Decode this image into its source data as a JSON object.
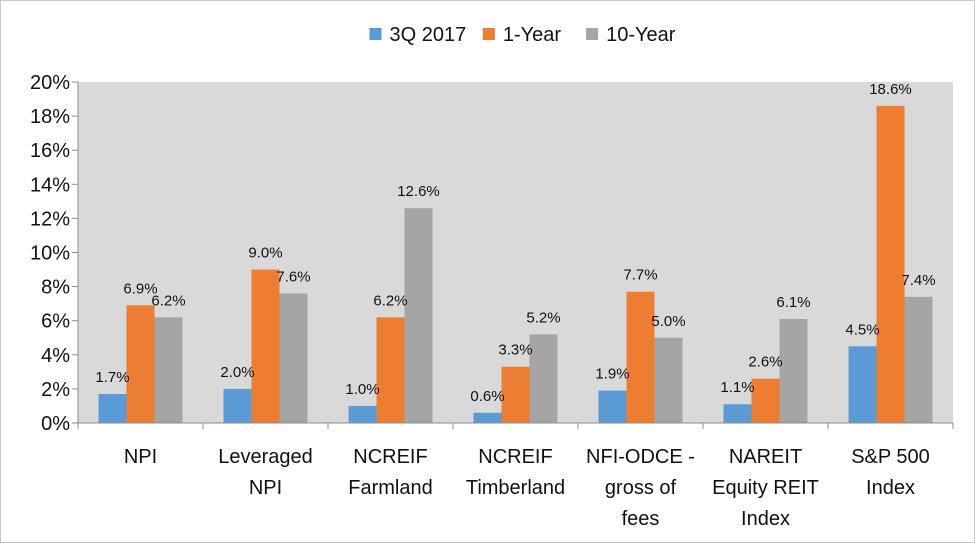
{
  "chart_data": {
    "type": "bar",
    "categories": [
      [
        "NPI"
      ],
      [
        "Leveraged",
        "NPI"
      ],
      [
        "NCREIF",
        "Farmland"
      ],
      [
        "NCREIF",
        "Timberland"
      ],
      [
        "NFI-ODCE -",
        "gross of",
        "fees"
      ],
      [
        "NAREIT",
        "Equity REIT",
        "Index"
      ],
      [
        "S&P 500",
        "Index"
      ]
    ],
    "series": [
      {
        "name": "3Q 2017",
        "color": "#5b9bd5",
        "values": [
          1.7,
          2.0,
          1.0,
          0.6,
          1.9,
          1.1,
          4.5
        ]
      },
      {
        "name": "1-Year",
        "color": "#ed7d31",
        "values": [
          6.9,
          9.0,
          6.2,
          3.3,
          7.7,
          2.6,
          18.6
        ]
      },
      {
        "name": "10-Year",
        "color": "#a5a5a5",
        "values": [
          6.2,
          7.6,
          12.6,
          5.2,
          5.0,
          6.1,
          7.4
        ]
      }
    ],
    "value_format": "percent_one_decimal",
    "yticks": [
      "0%",
      "2%",
      "4%",
      "6%",
      "8%",
      "10%",
      "12%",
      "14%",
      "16%",
      "18%",
      "20%"
    ],
    "ylim": [
      0,
      20
    ],
    "grid": false,
    "legend_position": "top-center",
    "plot_background": "#d9d9d9"
  }
}
